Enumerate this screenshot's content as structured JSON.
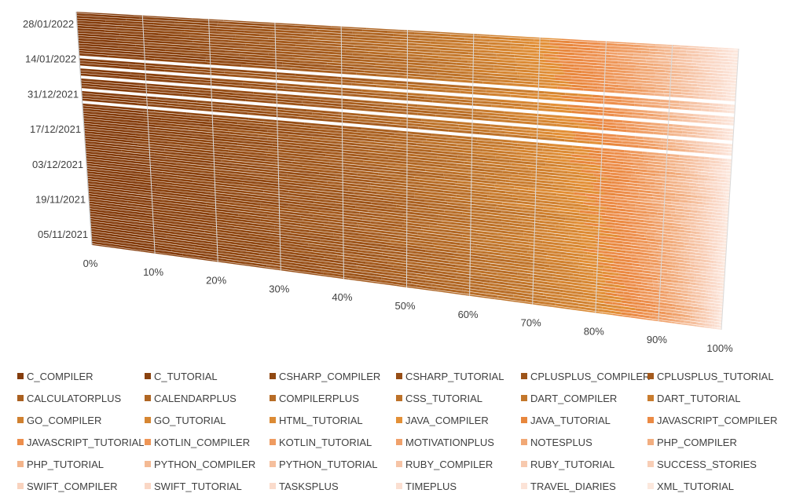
{
  "chart_data": {
    "type": "bar",
    "subtype": "100% stacked horizontal bar (3D perspective)",
    "title": "",
    "xlabel": "",
    "ylabel": "",
    "grid": true,
    "legend_position": "bottom",
    "x_ticks": [
      "0%",
      "10%",
      "20%",
      "30%",
      "40%",
      "50%",
      "60%",
      "70%",
      "80%",
      "90%",
      "100%"
    ],
    "y_ticks": [
      "05/11/2021",
      "19/11/2021",
      "03/12/2021",
      "17/12/2021",
      "31/12/2021",
      "14/01/2022",
      "28/01/2022"
    ],
    "date_range": [
      "2021-11-01",
      "2022-02-02"
    ],
    "series": [
      {
        "name": "C_COMPILER",
        "color": "#843c0c"
      },
      {
        "name": "C_TUTORIAL",
        "color": "#8a420f"
      },
      {
        "name": "CSHARP_COMPILER",
        "color": "#904812"
      },
      {
        "name": "CSHARP_TUTORIAL",
        "color": "#974e16"
      },
      {
        "name": "CPLUSPLUS_COMPILER",
        "color": "#9d5419"
      },
      {
        "name": "CPLUSPLUS_TUTORIAL",
        "color": "#a45a1d"
      },
      {
        "name": "CALCULATORPLUS",
        "color": "#aa6020"
      },
      {
        "name": "CALENDARPLUS",
        "color": "#b06623"
      },
      {
        "name": "COMPILERPLUS",
        "color": "#b76c26"
      },
      {
        "name": "CSS_TUTORIAL",
        "color": "#bd7229"
      },
      {
        "name": "DART_COMPILER",
        "color": "#c3772b"
      },
      {
        "name": "DART_TUTORIAL",
        "color": "#c97c2e"
      },
      {
        "name": "GO_COMPILER",
        "color": "#d08130"
      },
      {
        "name": "GO_TUTORIAL",
        "color": "#d68632"
      },
      {
        "name": "HTML_TUTORIAL",
        "color": "#dc8b35"
      },
      {
        "name": "JAVA_COMPILER",
        "color": "#e39037"
      },
      {
        "name": "JAVA_TUTORIAL",
        "color": "#e8873d"
      },
      {
        "name": "JAVASCRIPT_COMPILER",
        "color": "#eb8a44"
      },
      {
        "name": "JAVASCRIPT_TUTORIAL",
        "color": "#ed8e4c"
      },
      {
        "name": "KOTLIN_COMPILER",
        "color": "#ee9556"
      },
      {
        "name": "KOTLIN_TUTORIAL",
        "color": "#ef9b60"
      },
      {
        "name": "MOTIVATIONPLUS",
        "color": "#f0a16b"
      },
      {
        "name": "NOTESPLUS",
        "color": "#f1a875"
      },
      {
        "name": "PHP_COMPILER",
        "color": "#f2ae80"
      },
      {
        "name": "PHP_TUTORIAL",
        "color": "#f3b48a"
      },
      {
        "name": "PYTHON_COMPILER",
        "color": "#f4ba94"
      },
      {
        "name": "PYTHON_TUTORIAL",
        "color": "#f5bf9d"
      },
      {
        "name": "RUBY_COMPILER",
        "color": "#f6c4a6"
      },
      {
        "name": "RUBY_TUTORIAL",
        "color": "#f7c9ae"
      },
      {
        "name": "SUCCESS_STORIES",
        "color": "#f8ceb6"
      },
      {
        "name": "SWIFT_COMPILER",
        "color": "#f9d3be"
      },
      {
        "name": "SWIFT_TUTORIAL",
        "color": "#fad7c5"
      },
      {
        "name": "TASKSPLUS",
        "color": "#fadbcb"
      },
      {
        "name": "TIMEPLUS",
        "color": "#fbdfd1"
      },
      {
        "name": "TRAVEL_DIARIES",
        "color": "#fce3d7"
      },
      {
        "name": "XML_TUTORIAL",
        "color": "#fce8dd"
      }
    ]
  }
}
